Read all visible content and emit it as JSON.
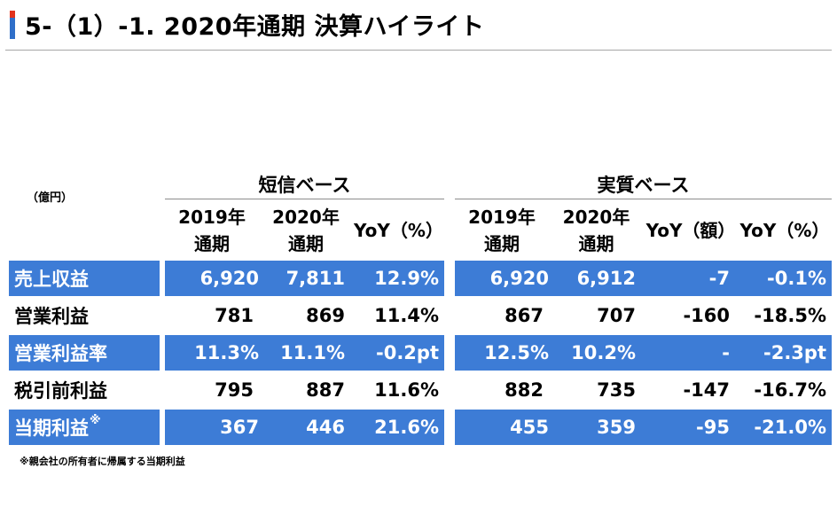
{
  "title": "5-（1）-1. 2020年通期 決算ハイライト",
  "unit": "（億円）",
  "groups": {
    "tanshin": "短信ベース",
    "jisshitsu": "実質ベース"
  },
  "columns": {
    "t_2019": "2019年\n通期",
    "t_2020": "2020年\n通期",
    "t_yoy": "YoY（%）",
    "j_2019": "2019年\n通期",
    "j_2020": "2020年\n通期",
    "j_yoy_amt": "YoY（額）",
    "j_yoy_pct": "YoY（%）"
  },
  "rows": [
    {
      "label": "売上収益",
      "sup": "",
      "t_2019": "6,920",
      "t_2020": "7,811",
      "t_yoy": "12.9%",
      "j_2019": "6,920",
      "j_2020": "6,912",
      "j_yoy_amt": "-7",
      "j_yoy_pct": "-0.1%"
    },
    {
      "label": "営業利益",
      "sup": "",
      "t_2019": "781",
      "t_2020": "869",
      "t_yoy": "11.4%",
      "j_2019": "867",
      "j_2020": "707",
      "j_yoy_amt": "-160",
      "j_yoy_pct": "-18.5%"
    },
    {
      "label": "営業利益率",
      "sup": "",
      "t_2019": "11.3%",
      "t_2020": "11.1%",
      "t_yoy": "-0.2pt",
      "j_2019": "12.5%",
      "j_2020": "10.2%",
      "j_yoy_amt": "-",
      "j_yoy_pct": "-2.3pt"
    },
    {
      "label": "税引前利益",
      "sup": "",
      "t_2019": "795",
      "t_2020": "887",
      "t_yoy": "11.6%",
      "j_2019": "882",
      "j_2020": "735",
      "j_yoy_amt": "-147",
      "j_yoy_pct": "-16.7%"
    },
    {
      "label": "当期利益",
      "sup": "※",
      "t_2019": "367",
      "t_2020": "446",
      "t_yoy": "21.6%",
      "j_2019": "455",
      "j_2020": "359",
      "j_yoy_amt": "-95",
      "j_yoy_pct": "-21.0%"
    }
  ],
  "footnote": "※親会社の所有者に帰属する当期利益",
  "colors": {
    "row_blue": "#3d7cd6",
    "marker_red": "#e2321c",
    "marker_blue": "#2f6fc9"
  }
}
